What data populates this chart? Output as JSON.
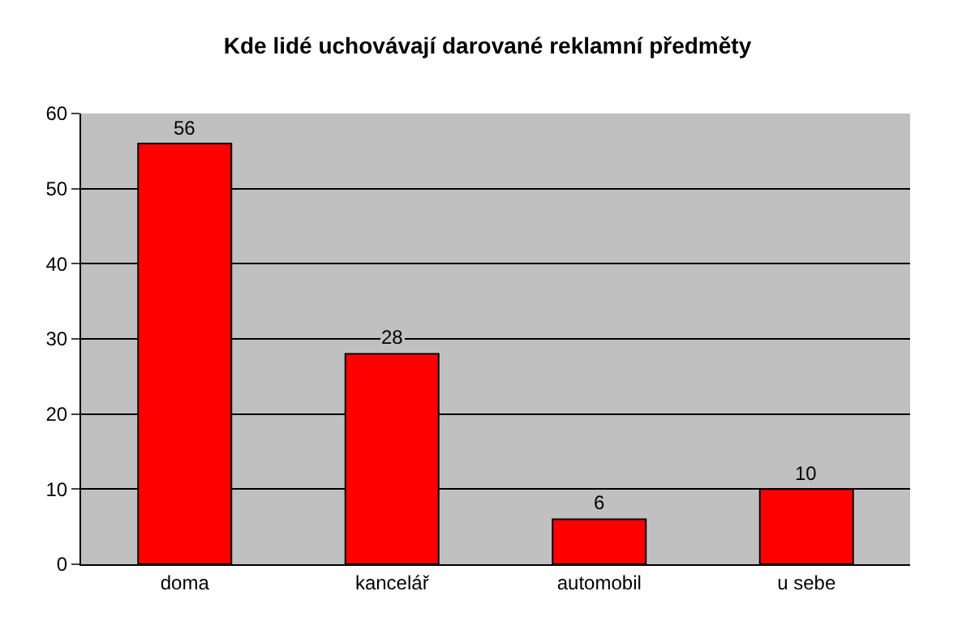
{
  "chart_data": {
    "type": "bar",
    "title": "Kde lidé uchovávají darované reklamní předměty",
    "categories": [
      "doma",
      "kancelář",
      "automobil",
      "u sebe"
    ],
    "values": [
      56,
      28,
      6,
      10
    ],
    "color": "#ff0000",
    "ylim": [
      0,
      60
    ],
    "yticks": [
      0,
      10,
      20,
      30,
      40,
      50,
      60
    ],
    "grid": "y",
    "data_labels": true
  }
}
